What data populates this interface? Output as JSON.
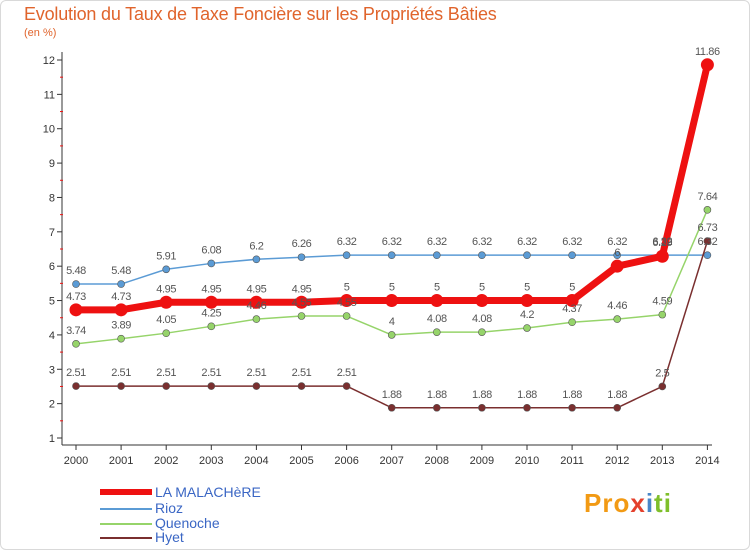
{
  "chart_data": {
    "type": "line",
    "title": "Evolution du Taux de Taxe Foncière sur les Propriétés Bâties",
    "unit_label": "(en %)",
    "xlabel": "",
    "ylabel": "(en %)",
    "ylim": [
      1,
      12
    ],
    "yticks": [
      "1",
      "2",
      "3",
      "4",
      "5",
      "6",
      "7",
      "8",
      "9",
      "10",
      "11",
      "12"
    ],
    "categories": [
      "2000",
      "2001",
      "2002",
      "2003",
      "2004",
      "2005",
      "2006",
      "2007",
      "2008",
      "2009",
      "2010",
      "2011",
      "2012",
      "2013",
      "2014"
    ],
    "series": [
      {
        "name": "LA MALACHèRE",
        "color": "#ee1111",
        "values": [
          4.73,
          4.73,
          4.95,
          4.95,
          4.95,
          4.95,
          5,
          5,
          5,
          5,
          5,
          5,
          6,
          6.29,
          11.86
        ],
        "labels": [
          "4.73",
          "4.73",
          "4.95",
          "4.95",
          "4.95",
          "4.95",
          "5",
          "5",
          "5",
          "5",
          "5",
          "5",
          "6",
          "6.29",
          "11.86"
        ]
      },
      {
        "name": "Rioz",
        "color": "#5b9bd5",
        "values": [
          5.48,
          5.48,
          5.91,
          6.08,
          6.2,
          6.26,
          6.32,
          6.32,
          6.32,
          6.32,
          6.32,
          6.32,
          6.32,
          6.32,
          6.32
        ],
        "labels": [
          "5.48",
          "5.48",
          "5.91",
          "6.08",
          "6.2",
          "6.26",
          "6.32",
          "6.32",
          "6.32",
          "6.32",
          "6.32",
          "6.32",
          "6.32",
          "6.32",
          "6.32"
        ]
      },
      {
        "name": "Quenoche",
        "color": "#96d46a",
        "values": [
          3.74,
          3.89,
          4.05,
          4.25,
          4.46,
          4.55,
          4.55,
          4,
          4.08,
          4.08,
          4.2,
          4.37,
          4.46,
          4.59,
          7.64
        ],
        "labels": [
          "3.74",
          "3.89",
          "4.05",
          "4.25",
          "4.46",
          "4.55",
          "4.55",
          "4",
          "4.08",
          "4.08",
          "4.2",
          "4.37",
          "4.46",
          "4.59",
          "7.64"
        ]
      },
      {
        "name": "Hyet",
        "color": "#7a2f2f",
        "values": [
          2.51,
          2.51,
          2.51,
          2.51,
          2.51,
          2.51,
          2.51,
          1.88,
          1.88,
          1.88,
          1.88,
          1.88,
          1.88,
          2.5,
          6.73
        ],
        "labels": [
          "2.51",
          "2.51",
          "2.51",
          "2.51",
          "2.51",
          "2.51",
          "2.51",
          "1.88",
          "1.88",
          "1.88",
          "1.88",
          "1.88",
          "1.88",
          "2.5",
          "6.73"
        ]
      }
    ],
    "grid": false,
    "legend_position": "bottom-left"
  },
  "logo": {
    "p1": "Pro",
    "p2": "x",
    "p3": "i",
    "p4": "ti"
  }
}
